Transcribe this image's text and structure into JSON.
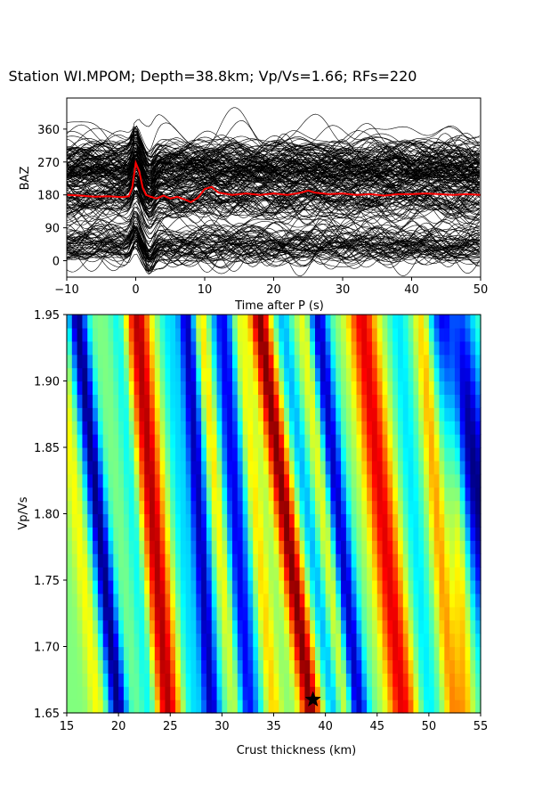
{
  "title": "Station WI.MPOM; Depth=38.8km; Vp/Vs=1.66; RFs=220",
  "chart_data": [
    {
      "type": "line",
      "xlabel": "Time after P (s)",
      "ylabel": "BAZ",
      "xlim": [
        -10,
        50
      ],
      "ylim": [
        -45,
        445
      ],
      "xticks": [
        -10,
        0,
        10,
        20,
        30,
        40,
        50
      ],
      "yticks": [
        0,
        90,
        180,
        270,
        360
      ],
      "trace_count": 220,
      "trace_color": "#000000",
      "mean_trace_color": "#ff0000",
      "mean_trace": {
        "baseline": 180,
        "x": [
          -10,
          -8,
          -6,
          -4,
          -2,
          -1,
          -0.5,
          0,
          0.5,
          1,
          1.5,
          2,
          3,
          4,
          5,
          6,
          7,
          8,
          9,
          10,
          11,
          12,
          14,
          16,
          18,
          20,
          22,
          24,
          25,
          26,
          28,
          30,
          32,
          34,
          36,
          38,
          40,
          42,
          44,
          46,
          48,
          50
        ],
        "y": [
          180,
          178,
          175,
          176,
          174,
          176,
          200,
          268,
          245,
          200,
          180,
          176,
          170,
          178,
          170,
          175,
          168,
          160,
          172,
          196,
          202,
          186,
          180,
          184,
          180,
          184,
          180,
          186,
          192,
          186,
          182,
          184,
          180,
          182,
          178,
          182,
          182,
          184,
          182,
          180,
          182,
          180
        ]
      }
    },
    {
      "type": "heatmap",
      "xlabel": "Crust thickness (km)",
      "ylabel": "Vp/Vs",
      "xlim": [
        15,
        55
      ],
      "ylim": [
        1.65,
        1.95
      ],
      "xticks": [
        15,
        20,
        25,
        30,
        35,
        40,
        45,
        50,
        55
      ],
      "yticks": [
        1.65,
        1.7,
        1.75,
        1.8,
        1.85,
        1.9,
        1.95
      ],
      "colormap": "jet",
      "best_fit": {
        "thickness": 38.8,
        "vpvs": 1.66,
        "marker": "star"
      },
      "bands": [
        {
          "h0": 20.0,
          "slope": -13.3,
          "amp": -1.0,
          "width": 0.9
        },
        {
          "h0": 18.0,
          "slope": -13.3,
          "amp": 0.25,
          "width": 0.8
        },
        {
          "h0": 24.8,
          "slope": -10.0,
          "amp": 0.9,
          "width": 1.2
        },
        {
          "h0": 23.0,
          "slope": -10.0,
          "amp": -0.3,
          "width": 0.8
        },
        {
          "h0": 27.2,
          "slope": -8.0,
          "amp": -0.3,
          "width": 0.9
        },
        {
          "h0": 29.0,
          "slope": -8.0,
          "amp": -0.9,
          "width": 0.9
        },
        {
          "h0": 32.5,
          "slope": -8.0,
          "amp": -0.8,
          "width": 1.2
        },
        {
          "h0": 31.5,
          "slope": -12.0,
          "amp": 0.4,
          "width": 0.8
        },
        {
          "h0": 35.0,
          "slope": -12.0,
          "amp": 0.35,
          "width": 0.8
        },
        {
          "h0": 38.6,
          "slope": -16.7,
          "amp": 1.0,
          "width": 1.0
        },
        {
          "h0": 40.8,
          "slope": -16.7,
          "amp": -0.4,
          "width": 0.8
        },
        {
          "h0": 43.2,
          "slope": -13.3,
          "amp": -0.9,
          "width": 1.0
        },
        {
          "h0": 47.5,
          "slope": -13.3,
          "amp": 0.8,
          "width": 1.4
        },
        {
          "h0": 42.0,
          "slope": -13.3,
          "amp": 0.35,
          "width": 0.8
        },
        {
          "h0": 50.0,
          "slope": -10.0,
          "amp": -0.3,
          "width": 1.0
        },
        {
          "h0": 52.3,
          "slope": -10.0,
          "amp": 0.45,
          "width": 0.8
        },
        {
          "h0": 58.0,
          "slope": -20.0,
          "amp": -1.0,
          "width": 2.0
        },
        {
          "h0": 53.5,
          "slope": -4.0,
          "amp": 0.4,
          "width": 0.8
        }
      ]
    }
  ]
}
